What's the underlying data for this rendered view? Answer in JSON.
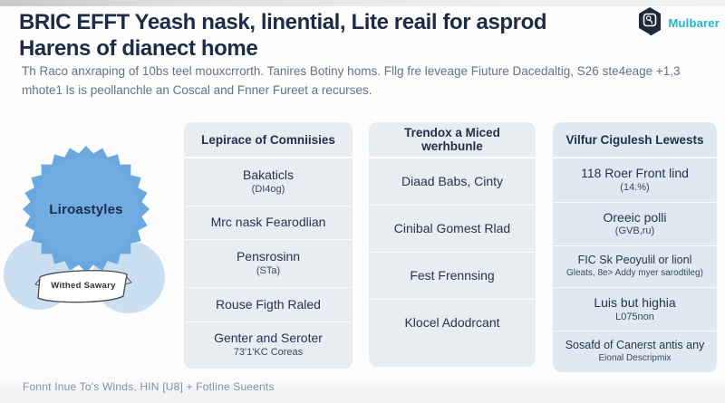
{
  "page": {
    "title": "BRIC EFFT Yeash nask, linential, Lite reail for asprod\nHarens of dianect home",
    "subtitle": "Th Raco anxraping of 10bs teel mouxcrrorth. Tanires Botiny homs. Fllg fre leveage Fiuture Dacedaltig, S26 ste4eage +1,3\nmhote1 ls is peollanchle an Coscal and Fnner Fureet a recurses.",
    "footer": "Fonnt Inue To's Winds, HIN [U8] + Fotline Sueents"
  },
  "brand": {
    "name": "Mulbarer",
    "logo_icon": "hexagon-cube-icon",
    "accent_color": "#23b3c6",
    "logo_color": "#1e2a3a"
  },
  "badge": {
    "star_label": "Liroastyles",
    "ribbon_label": "Withed Sawary",
    "star_color": "#6ba8df",
    "circle_color": "#cbdff2"
  },
  "columns": [
    {
      "header": "Lepirace of Comniisies",
      "cells": [
        {
          "text": "Bakaticls",
          "sub": "(DI4og)"
        },
        {
          "text": "Mrc nask Fearodlian",
          "sub": ""
        },
        {
          "text": "Pensrosinn",
          "sub": "(STa)"
        },
        {
          "text": "Rouse Figth Raled",
          "sub": ""
        },
        {
          "text": "Genter and Seroter",
          "sub": "73'1'KC Coreas"
        }
      ]
    },
    {
      "header": "Trendox a Miced werhbunle",
      "cells": [
        {
          "text": "Diaad Babs, Cinty",
          "sub": ""
        },
        {
          "text": "Cinibal Gomest Rlad",
          "sub": ""
        },
        {
          "text": "Fest Frennsing",
          "sub": ""
        },
        {
          "text": "Klocel Adodrcant",
          "sub": ""
        }
      ]
    },
    {
      "header": "Vilfur Cigulesh Lewests",
      "cells": [
        {
          "text": "118 Roer Front lind",
          "sub": "(14.%)"
        },
        {
          "text": "Oreeic polli",
          "sub": "(GVB,ru)"
        },
        {
          "text": "FIC Sk Peoyulil or lionl",
          "sub": "Gleats, 8e> Addy myer sarodtileg)"
        },
        {
          "text": "Luis but highia",
          "sub": "L075non"
        },
        {
          "text": "Sosafd of Canerst antis any",
          "sub": "Eional Descripmix"
        }
      ]
    }
  ]
}
